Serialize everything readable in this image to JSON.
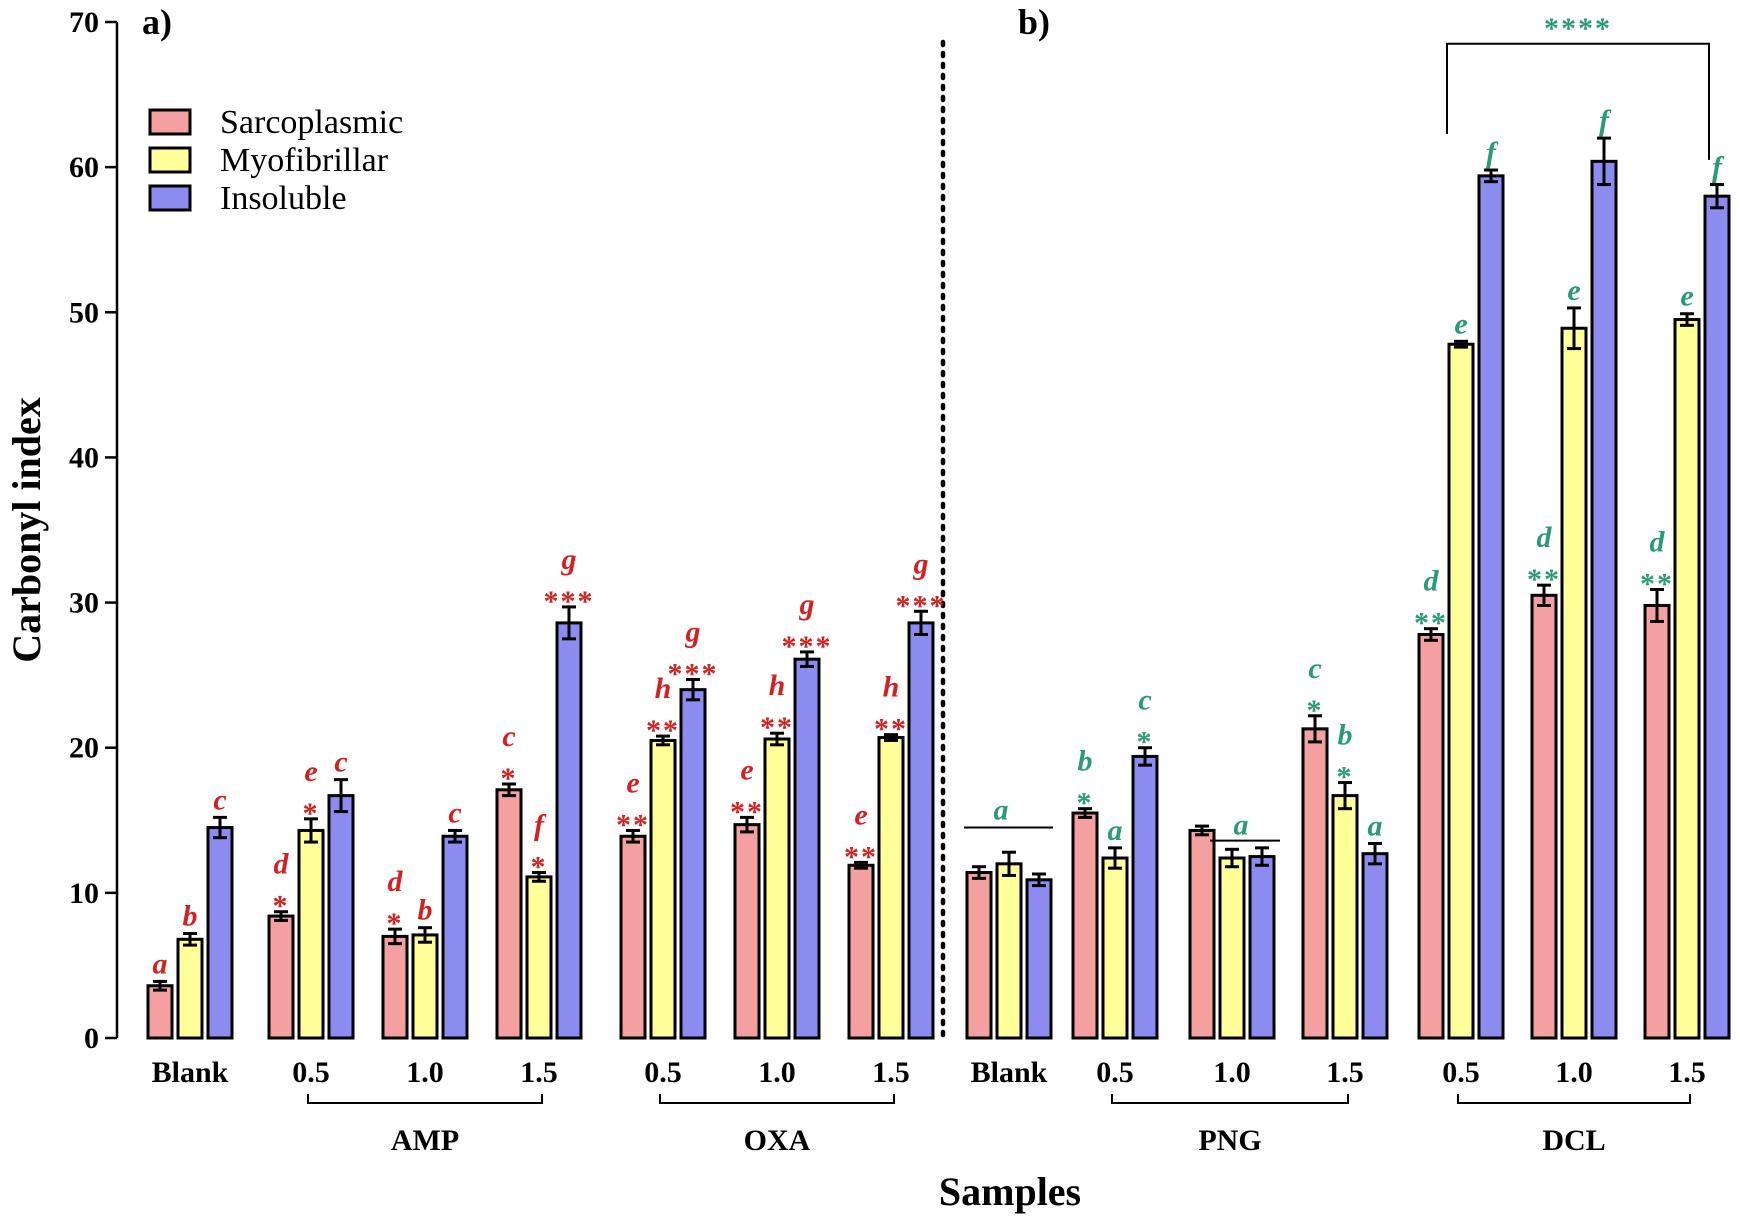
{
  "chart_data": {
    "type": "bar",
    "title": "",
    "xlabel": "Samples",
    "ylabel": "Carbonyl index",
    "ylim": [
      0,
      70
    ],
    "yticks": [
      0,
      10,
      20,
      30,
      40,
      50,
      60,
      70
    ],
    "grid": false,
    "legend_position": "top-left",
    "panel_labels": [
      "a)",
      "b)"
    ],
    "series": [
      {
        "name": "Sarcoplasmic",
        "color": "#f4a0a0"
      },
      {
        "name": "Myofibrillar",
        "color": "#ffff99"
      },
      {
        "name": "Insoluble",
        "color": "#8b8bf0"
      }
    ],
    "annotation_colors": {
      "a": "#d42020",
      "b": "#2a9a78"
    },
    "categories": [
      {
        "label": "Blank",
        "panel": "a",
        "values": [
          3.6,
          6.8,
          14.5
        ],
        "errors": [
          0.3,
          0.4,
          0.7
        ],
        "letters": [
          "a",
          "b",
          "c"
        ],
        "stars": [
          "",
          "",
          ""
        ]
      },
      {
        "label": "0.5",
        "panel": "a",
        "group": "AMP",
        "values": [
          8.4,
          14.3,
          16.7
        ],
        "errors": [
          0.3,
          0.8,
          1.1
        ],
        "letters": [
          "d",
          "e",
          "c"
        ],
        "stars": [
          "*",
          "*",
          ""
        ]
      },
      {
        "label": "1.0",
        "panel": "a",
        "group": "AMP",
        "values": [
          7.0,
          7.1,
          13.9
        ],
        "errors": [
          0.5,
          0.5,
          0.4
        ],
        "letters": [
          "d",
          "b",
          "c"
        ],
        "stars": [
          "*",
          "",
          ""
        ]
      },
      {
        "label": "1.5",
        "panel": "a",
        "group": "AMP",
        "values": [
          17.1,
          11.1,
          28.6
        ],
        "errors": [
          0.4,
          0.3,
          1.1
        ],
        "letters": [
          "c",
          "f",
          "g"
        ],
        "stars": [
          "*",
          "*",
          "***"
        ]
      },
      {
        "label": "0.5",
        "panel": "a",
        "group": "OXA",
        "values": [
          13.9,
          20.5,
          24.0
        ],
        "errors": [
          0.4,
          0.3,
          0.7
        ],
        "letters": [
          "e",
          "h",
          "g"
        ],
        "stars": [
          "**",
          "**",
          "***"
        ]
      },
      {
        "label": "1.0",
        "panel": "a",
        "group": "OXA",
        "values": [
          14.7,
          20.6,
          26.1
        ],
        "errors": [
          0.5,
          0.4,
          0.5
        ],
        "letters": [
          "e",
          "h",
          "g"
        ],
        "stars": [
          "**",
          "**",
          "***"
        ]
      },
      {
        "label": "1.5",
        "panel": "a",
        "group": "OXA",
        "values": [
          11.9,
          20.7,
          28.6
        ],
        "errors": [
          0.2,
          0.2,
          0.8
        ],
        "letters": [
          "e",
          "h",
          "g"
        ],
        "stars": [
          "**",
          "**",
          "***"
        ]
      },
      {
        "label": "Blank",
        "panel": "b",
        "values": [
          11.4,
          12.0,
          10.9
        ],
        "errors": [
          0.4,
          0.8,
          0.4
        ],
        "letters": [
          "",
          "",
          ""
        ],
        "stars": [
          "",
          "",
          ""
        ]
      },
      {
        "label": "0.5",
        "panel": "b",
        "group": "PNG",
        "values": [
          15.5,
          12.4,
          19.4
        ],
        "errors": [
          0.3,
          0.7,
          0.6
        ],
        "letters": [
          "b",
          "a",
          "c"
        ],
        "stars": [
          "*",
          "",
          "*"
        ]
      },
      {
        "label": "1.0",
        "panel": "b",
        "group": "PNG",
        "values": [
          14.3,
          12.4,
          12.5
        ],
        "errors": [
          0.3,
          0.6,
          0.6
        ],
        "letters": [
          "",
          "",
          ""
        ],
        "stars": [
          "",
          "",
          ""
        ]
      },
      {
        "label": "1.5",
        "panel": "b",
        "group": "PNG",
        "values": [
          21.3,
          16.7,
          12.7
        ],
        "errors": [
          0.9,
          0.9,
          0.7
        ],
        "letters": [
          "c",
          "b",
          "a"
        ],
        "stars": [
          "*",
          "*",
          ""
        ]
      },
      {
        "label": "0.5",
        "panel": "b",
        "group": "DCL",
        "values": [
          27.8,
          47.8,
          59.4
        ],
        "errors": [
          0.4,
          0.2,
          0.4
        ],
        "letters": [
          "d",
          "e",
          "f"
        ],
        "stars": [
          "**",
          "",
          ""
        ]
      },
      {
        "label": "1.0",
        "panel": "b",
        "group": "DCL",
        "values": [
          30.5,
          48.9,
          60.4
        ],
        "errors": [
          0.7,
          1.4,
          1.6
        ],
        "letters": [
          "d",
          "e",
          "f"
        ],
        "stars": [
          "**",
          "",
          ""
        ]
      },
      {
        "label": "1.5",
        "panel": "b",
        "group": "DCL",
        "values": [
          29.8,
          49.5,
          58.0
        ],
        "errors": [
          1.1,
          0.4,
          0.8
        ],
        "letters": [
          "d",
          "e",
          "f"
        ],
        "stars": [
          "**",
          "",
          ""
        ]
      }
    ],
    "groups": [
      "AMP",
      "OXA",
      "PNG",
      "DCL"
    ],
    "shared_annotations": [
      {
        "text": "a",
        "value": 14.5,
        "label": "b-blank-line"
      },
      {
        "text": "a",
        "value": 13.6,
        "label": "png-10-line"
      }
    ],
    "bracket_annotation": {
      "text": "****",
      "value": 68.5
    }
  }
}
